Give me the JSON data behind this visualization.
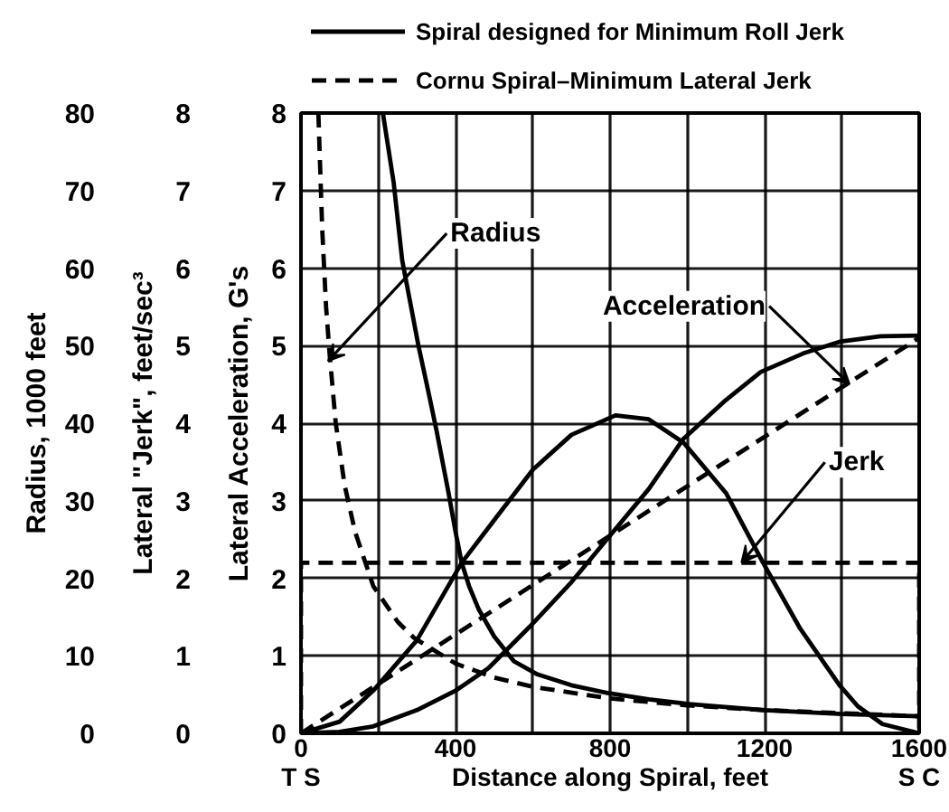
{
  "chart_data": {
    "type": "line",
    "xlabel": "Distance along Spiral, feet",
    "ylabel": "Lateral \"Jerk\", feet/sec³",
    "y2label": "Lateral Acceleration, G's",
    "y3label": "Radius, 1000 feet",
    "xlim": [
      0,
      1600
    ],
    "xticks": [
      0,
      {
        "value": 200,
        "label": null
      },
      400,
      {
        "value": 600,
        "label": null
      },
      800,
      {
        "value": 1000,
        "label": null
      },
      1200,
      {
        "value": 1400,
        "label": null
      },
      1600
    ],
    "ylim": [
      0,
      8
    ],
    "yticks": [
      0,
      1,
      2,
      3,
      4,
      5,
      6,
      7,
      8
    ],
    "y2lim": [
      0,
      8
    ],
    "y2ticks": [
      0,
      1,
      2,
      3,
      4,
      5,
      6,
      7,
      8
    ],
    "y3lim": [
      0,
      80
    ],
    "y3ticks": [
      0,
      10,
      20,
      30,
      40,
      50,
      60,
      70,
      80
    ],
    "grid": true,
    "legend": "top",
    "series": [
      {
        "name": "Spiral designed for Minimum Roll Jerk",
        "color": "#000000",
        "line_style": "solid",
        "axis": "y3",
        "x": [
          212,
          240,
          262,
          285,
          304,
          330,
          351,
          382,
          400,
          416,
          435,
          460,
          500,
          551,
          612,
          700,
          793,
          900,
          1000,
          1200,
          1400,
          1600
        ],
        "values": [
          80,
          71,
          61,
          55,
          50,
          44,
          39,
          31,
          26,
          22,
          19,
          16,
          12.5,
          9.3,
          7.6,
          6.2,
          5.2,
          4.4,
          3.8,
          3.0,
          2.5,
          2.2
        ]
      },
      {
        "color": "#000000",
        "line_style": "solid",
        "x": [
          0,
          100,
          187,
          300,
          416,
          500,
          600,
          700,
          814,
          900,
          990,
          1100,
          1196,
          1292,
          1394,
          1441,
          1505,
          1600
        ],
        "values": [
          0,
          0.15,
          0.55,
          1.2,
          2.2,
          2.75,
          3.4,
          3.85,
          4.1,
          4.05,
          3.75,
          3.1,
          2.2,
          1.35,
          0.62,
          0.35,
          0.12,
          0
        ]
      },
      {
        "color": "#000000",
        "line_style": "solid",
        "axis": "y2",
        "x": [
          0,
          100,
          187,
          300,
          400,
          485,
          591,
          700,
          800,
          900,
          990,
          1100,
          1190,
          1300,
          1394,
          1500,
          1600
        ],
        "values": [
          0,
          0.02,
          0.09,
          0.3,
          0.55,
          0.84,
          1.37,
          1.95,
          2.55,
          3.15,
          3.8,
          4.3,
          4.66,
          4.9,
          5.05,
          5.12,
          5.13
        ]
      },
      {
        "name": "Cornu Spiral–Minimum Lateral Jerk",
        "color": "#000000",
        "line_style": "dashed",
        "axis": "y3",
        "x": [
          45,
          55,
          65,
          74,
          90,
          113,
          140,
          187,
          250,
          293,
          400,
          500,
          600,
          800,
          1000,
          1200,
          1400,
          1600
        ],
        "values": [
          80,
          65,
          55,
          49,
          40,
          32,
          26,
          19,
          14.4,
          12.3,
          9,
          7.2,
          6,
          4.5,
          3.6,
          3,
          2.6,
          2.2
        ]
      },
      {
        "color": "#000000",
        "line_style": "dashed",
        "x": [
          0,
          0,
          1600,
          1600
        ],
        "values": [
          0,
          2.2,
          2.2,
          0
        ]
      },
      {
        "color": "#000000",
        "line_style": "dashed",
        "axis": "y2",
        "x": [
          0,
          1600
        ],
        "values": [
          0,
          5.1
        ]
      }
    ],
    "annotations": [
      {
        "text": "Radius",
        "x": 70,
        "y": 4.8
      },
      {
        "text": "Acceleration",
        "x": 1420,
        "y": 4.5
      },
      {
        "text": "Jerk",
        "x": 1140,
        "y": 2.2
      },
      "T S",
      "S C"
    ]
  }
}
